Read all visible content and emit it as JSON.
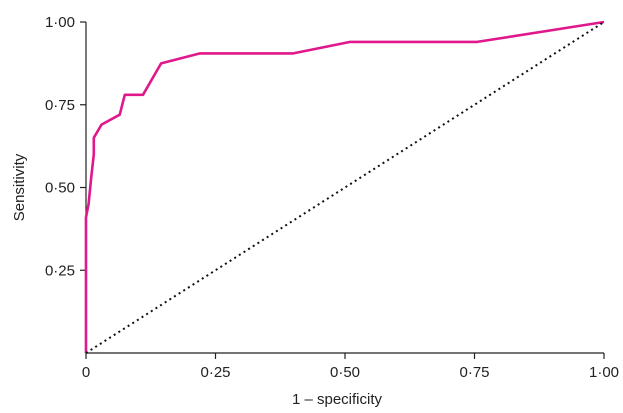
{
  "chart_data": {
    "type": "line",
    "xlabel": "1 – specificity",
    "ylabel": "Sensitivity",
    "xlim": [
      0,
      1
    ],
    "ylim": [
      0,
      1
    ],
    "x_ticks": [
      {
        "value": 0,
        "label": "0"
      },
      {
        "value": 0.25,
        "label": "0·25"
      },
      {
        "value": 0.5,
        "label": "0·50"
      },
      {
        "value": 0.75,
        "label": "0·75"
      },
      {
        "value": 1,
        "label": "1·00"
      }
    ],
    "y_ticks": [
      {
        "value": 0.25,
        "label": "0·25"
      },
      {
        "value": 0.5,
        "label": "0·50"
      },
      {
        "value": 0.75,
        "label": "0·75"
      },
      {
        "value": 1,
        "label": "1·00"
      }
    ],
    "grid": false,
    "series": [
      {
        "style": "solid",
        "color": "#e0188c",
        "points": [
          [
            0.0,
            0.0
          ],
          [
            0.0,
            0.41
          ],
          [
            0.005,
            0.45
          ],
          [
            0.01,
            0.53
          ],
          [
            0.015,
            0.6
          ],
          [
            0.015,
            0.65
          ],
          [
            0.03,
            0.69
          ],
          [
            0.065,
            0.72
          ],
          [
            0.075,
            0.78
          ],
          [
            0.11,
            0.78
          ],
          [
            0.145,
            0.875
          ],
          [
            0.22,
            0.905
          ],
          [
            0.4,
            0.905
          ],
          [
            0.51,
            0.94
          ],
          [
            0.755,
            0.94
          ],
          [
            1.0,
            1.0
          ]
        ]
      },
      {
        "style": "dotted",
        "color": "#111111",
        "points": [
          [
            0.0,
            0.0
          ],
          [
            1.0,
            1.0
          ]
        ]
      }
    ]
  }
}
